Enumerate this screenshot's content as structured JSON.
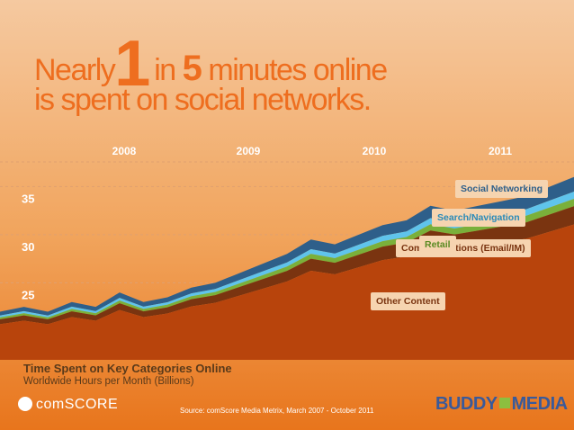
{
  "headline": {
    "line1_a": "Nearly",
    "line1_num1": "1",
    "line1_b": "in",
    "line1_num2": "5",
    "line1_c": "minutes online",
    "line2": "is spent on social networks."
  },
  "chart_data": {
    "type": "area",
    "title": "Time Spent on Key Categories Online",
    "subtitle": "Worldwide Hours per Month (Billions)",
    "x_labels": [
      "2008",
      "2009",
      "2010",
      "2011"
    ],
    "y_ticks": [
      25,
      30,
      35
    ],
    "ylim": [
      17,
      37
    ],
    "stacked": true,
    "series": [
      {
        "name": "Other Content",
        "color": "#b8440c"
      },
      {
        "name": "Communications (Email/IM)",
        "color": "#7a3410"
      },
      {
        "name": "Retail",
        "color": "#7ab03a"
      },
      {
        "name": "Search/Navigation",
        "color": "#5fc4ec"
      },
      {
        "name": "Social Networking",
        "color": "#2e5f8a"
      }
    ],
    "totals_approx": [
      22,
      22.5,
      22,
      23,
      22.5,
      24,
      23,
      23.5,
      24.5,
      25,
      26,
      27,
      28,
      29.5,
      29,
      30,
      31,
      31.5,
      33,
      32.5,
      33,
      33.5,
      34,
      35,
      36
    ]
  },
  "source": "Source: comScore Media Metrix, March 2007 - October 2011",
  "logos": {
    "left": "comSCORE",
    "right_a": "BUDDY",
    "right_b": "MEDIA"
  }
}
